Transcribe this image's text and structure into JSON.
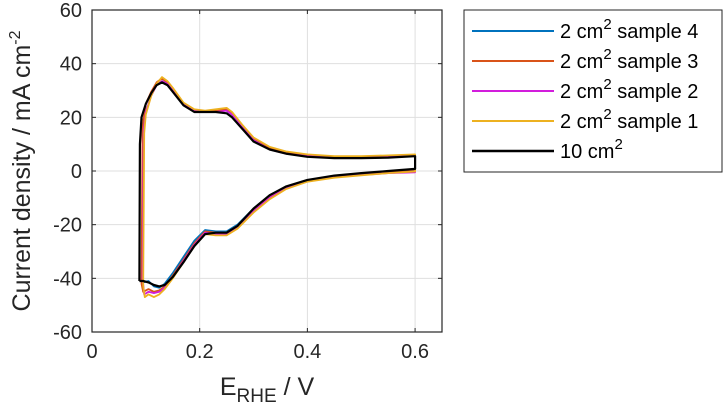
{
  "chart_data": {
    "type": "line",
    "xlabel": {
      "main": "E",
      "sub": "RHE",
      "unit": " / V"
    },
    "ylabel": {
      "main": "Current density / mA cm",
      "sup": "-2"
    },
    "xlim": [
      0,
      0.65
    ],
    "ylim": [
      -60,
      60
    ],
    "xticks": [
      "0",
      "0.2",
      "0.4",
      "0.6"
    ],
    "xtick_values": [
      0,
      0.2,
      0.4,
      0.6
    ],
    "yticks": [
      "-60",
      "-40",
      "-20",
      "0",
      "20",
      "40",
      "60"
    ],
    "ytick_values": [
      -60,
      -40,
      -20,
      0,
      20,
      40,
      60
    ],
    "grid": true,
    "legend_position": "outside-right",
    "series": [
      {
        "name": "2 cm",
        "sup": "2",
        "suffix": " sample 4",
        "color": "#0072BD",
        "anodic": [
          [
            0.093,
            -41
          ],
          [
            0.095,
            18
          ],
          [
            0.1,
            25
          ],
          [
            0.11,
            29
          ],
          [
            0.12,
            32
          ],
          [
            0.13,
            33.5
          ],
          [
            0.14,
            32.5
          ],
          [
            0.15,
            30
          ],
          [
            0.17,
            25
          ],
          [
            0.19,
            22.5
          ],
          [
            0.21,
            22
          ],
          [
            0.23,
            22.5
          ],
          [
            0.25,
            22.5
          ],
          [
            0.26,
            21
          ],
          [
            0.28,
            16
          ],
          [
            0.3,
            11.5
          ],
          [
            0.33,
            8.5
          ],
          [
            0.36,
            7
          ],
          [
            0.4,
            6
          ],
          [
            0.45,
            5.3
          ],
          [
            0.5,
            5.3
          ],
          [
            0.55,
            5.6
          ],
          [
            0.6,
            6
          ]
        ],
        "cathodic": [
          [
            0.6,
            6
          ],
          [
            0.6,
            0
          ],
          [
            0.55,
            -0.5
          ],
          [
            0.5,
            -1.2
          ],
          [
            0.45,
            -2
          ],
          [
            0.4,
            -3.5
          ],
          [
            0.36,
            -6
          ],
          [
            0.33,
            -9
          ],
          [
            0.3,
            -14
          ],
          [
            0.27,
            -20
          ],
          [
            0.25,
            -22.5
          ],
          [
            0.23,
            -22.5
          ],
          [
            0.21,
            -22
          ],
          [
            0.19,
            -26
          ],
          [
            0.17,
            -32
          ],
          [
            0.15,
            -38
          ],
          [
            0.135,
            -42
          ],
          [
            0.125,
            -43.5
          ],
          [
            0.115,
            -43
          ],
          [
            0.105,
            -41
          ],
          [
            0.095,
            -41.5
          ],
          [
            0.093,
            -41
          ]
        ]
      },
      {
        "name": "2 cm",
        "sup": "2",
        "suffix": " sample 3",
        "color": "#D95319",
        "anodic": [
          [
            0.092,
            -42
          ],
          [
            0.094,
            17
          ],
          [
            0.1,
            25
          ],
          [
            0.11,
            29.5
          ],
          [
            0.12,
            33
          ],
          [
            0.13,
            34.5
          ],
          [
            0.14,
            33
          ],
          [
            0.15,
            30.5
          ],
          [
            0.17,
            25
          ],
          [
            0.19,
            22.5
          ],
          [
            0.21,
            22
          ],
          [
            0.23,
            22.5
          ],
          [
            0.25,
            23
          ],
          [
            0.26,
            21.5
          ],
          [
            0.28,
            16.5
          ],
          [
            0.3,
            12
          ],
          [
            0.33,
            8.5
          ],
          [
            0.36,
            7
          ],
          [
            0.4,
            6
          ],
          [
            0.45,
            5.3
          ],
          [
            0.5,
            5.3
          ],
          [
            0.55,
            5.6
          ],
          [
            0.6,
            6
          ]
        ],
        "cathodic": [
          [
            0.6,
            6
          ],
          [
            0.6,
            0
          ],
          [
            0.55,
            -0.6
          ],
          [
            0.5,
            -1.3
          ],
          [
            0.45,
            -2.2
          ],
          [
            0.4,
            -3.7
          ],
          [
            0.36,
            -6.2
          ],
          [
            0.33,
            -9.5
          ],
          [
            0.3,
            -14.5
          ],
          [
            0.27,
            -20.5
          ],
          [
            0.25,
            -23
          ],
          [
            0.23,
            -23
          ],
          [
            0.21,
            -22.5
          ],
          [
            0.19,
            -27
          ],
          [
            0.17,
            -33
          ],
          [
            0.15,
            -39
          ],
          [
            0.135,
            -43
          ],
          [
            0.125,
            -44.5
          ],
          [
            0.115,
            -45
          ],
          [
            0.105,
            -44
          ],
          [
            0.095,
            -45
          ],
          [
            0.092,
            -42
          ]
        ]
      },
      {
        "name": "2 cm",
        "sup": "2",
        "suffix": " sample 2",
        "color": "#D21DDC",
        "anodic": [
          [
            0.094,
            -40
          ],
          [
            0.096,
            15
          ],
          [
            0.1,
            22
          ],
          [
            0.11,
            28
          ],
          [
            0.12,
            32
          ],
          [
            0.13,
            33.5
          ],
          [
            0.14,
            32.5
          ],
          [
            0.15,
            30
          ],
          [
            0.17,
            25
          ],
          [
            0.19,
            22.5
          ],
          [
            0.21,
            22
          ],
          [
            0.23,
            22
          ],
          [
            0.25,
            22.5
          ],
          [
            0.26,
            21
          ],
          [
            0.28,
            16
          ],
          [
            0.3,
            11.5
          ],
          [
            0.33,
            8
          ],
          [
            0.36,
            6.5
          ],
          [
            0.4,
            5.5
          ],
          [
            0.45,
            5
          ],
          [
            0.5,
            5
          ],
          [
            0.55,
            5.3
          ],
          [
            0.6,
            5.8
          ]
        ],
        "cathodic": [
          [
            0.6,
            5.8
          ],
          [
            0.6,
            -0.5
          ],
          [
            0.55,
            -0.8
          ],
          [
            0.5,
            -1.5
          ],
          [
            0.45,
            -2.3
          ],
          [
            0.4,
            -3.8
          ],
          [
            0.36,
            -6.5
          ],
          [
            0.33,
            -10
          ],
          [
            0.3,
            -15
          ],
          [
            0.27,
            -21
          ],
          [
            0.25,
            -23.5
          ],
          [
            0.23,
            -23.5
          ],
          [
            0.21,
            -23
          ],
          [
            0.19,
            -27.5
          ],
          [
            0.17,
            -33.5
          ],
          [
            0.15,
            -39.5
          ],
          [
            0.135,
            -43.5
          ],
          [
            0.125,
            -45
          ],
          [
            0.115,
            -45.5
          ],
          [
            0.105,
            -45
          ],
          [
            0.097,
            -46
          ],
          [
            0.094,
            -40
          ]
        ]
      },
      {
        "name": "2 cm",
        "sup": "2",
        "suffix": " sample 1",
        "color": "#EDB120",
        "anodic": [
          [
            0.095,
            -43
          ],
          [
            0.097,
            14
          ],
          [
            0.1,
            21
          ],
          [
            0.11,
            28
          ],
          [
            0.12,
            32.5
          ],
          [
            0.13,
            35
          ],
          [
            0.14,
            33.5
          ],
          [
            0.15,
            31
          ],
          [
            0.17,
            25.5
          ],
          [
            0.19,
            23
          ],
          [
            0.21,
            22.5
          ],
          [
            0.23,
            23
          ],
          [
            0.25,
            23.5
          ],
          [
            0.26,
            22
          ],
          [
            0.28,
            17
          ],
          [
            0.3,
            12.5
          ],
          [
            0.33,
            9
          ],
          [
            0.36,
            7.3
          ],
          [
            0.4,
            6.2
          ],
          [
            0.45,
            5.5
          ],
          [
            0.5,
            5.5
          ],
          [
            0.55,
            5.8
          ],
          [
            0.6,
            6.2
          ]
        ],
        "cathodic": [
          [
            0.6,
            6.2
          ],
          [
            0.6,
            -0.2
          ],
          [
            0.55,
            -0.8
          ],
          [
            0.5,
            -1.6
          ],
          [
            0.45,
            -2.5
          ],
          [
            0.4,
            -4
          ],
          [
            0.36,
            -6.8
          ],
          [
            0.33,
            -10.5
          ],
          [
            0.3,
            -15.5
          ],
          [
            0.27,
            -21.5
          ],
          [
            0.25,
            -24
          ],
          [
            0.23,
            -24
          ],
          [
            0.21,
            -23.5
          ],
          [
            0.19,
            -28
          ],
          [
            0.17,
            -34
          ],
          [
            0.15,
            -40
          ],
          [
            0.135,
            -44
          ],
          [
            0.125,
            -46
          ],
          [
            0.115,
            -47
          ],
          [
            0.105,
            -46
          ],
          [
            0.098,
            -47
          ],
          [
            0.095,
            -43
          ]
        ]
      },
      {
        "name": "10 cm",
        "sup": "2",
        "suffix": "",
        "color": "#000000",
        "anodic": [
          [
            0.088,
            -41
          ],
          [
            0.089,
            10
          ],
          [
            0.092,
            20
          ],
          [
            0.1,
            25
          ],
          [
            0.11,
            29
          ],
          [
            0.12,
            32
          ],
          [
            0.13,
            33
          ],
          [
            0.14,
            32
          ],
          [
            0.15,
            29.5
          ],
          [
            0.17,
            24.5
          ],
          [
            0.19,
            22
          ],
          [
            0.21,
            22
          ],
          [
            0.23,
            22
          ],
          [
            0.25,
            21.5
          ],
          [
            0.26,
            20
          ],
          [
            0.28,
            15.5
          ],
          [
            0.3,
            11
          ],
          [
            0.33,
            8
          ],
          [
            0.36,
            6.5
          ],
          [
            0.4,
            5.3
          ],
          [
            0.45,
            4.8
          ],
          [
            0.5,
            4.8
          ],
          [
            0.55,
            5
          ],
          [
            0.6,
            5.5
          ]
        ],
        "cathodic": [
          [
            0.6,
            5.5
          ],
          [
            0.6,
            0.8
          ],
          [
            0.55,
            0
          ],
          [
            0.5,
            -0.8
          ],
          [
            0.45,
            -1.7
          ],
          [
            0.4,
            -3.3
          ],
          [
            0.36,
            -5.8
          ],
          [
            0.33,
            -9
          ],
          [
            0.3,
            -14
          ],
          [
            0.27,
            -20.5
          ],
          [
            0.25,
            -23
          ],
          [
            0.23,
            -23
          ],
          [
            0.21,
            -23.5
          ],
          [
            0.19,
            -28
          ],
          [
            0.17,
            -34
          ],
          [
            0.15,
            -39.5
          ],
          [
            0.135,
            -42.5
          ],
          [
            0.125,
            -43
          ],
          [
            0.115,
            -42.5
          ],
          [
            0.105,
            -41.5
          ],
          [
            0.095,
            -41
          ],
          [
            0.088,
            -41
          ]
        ]
      }
    ]
  }
}
